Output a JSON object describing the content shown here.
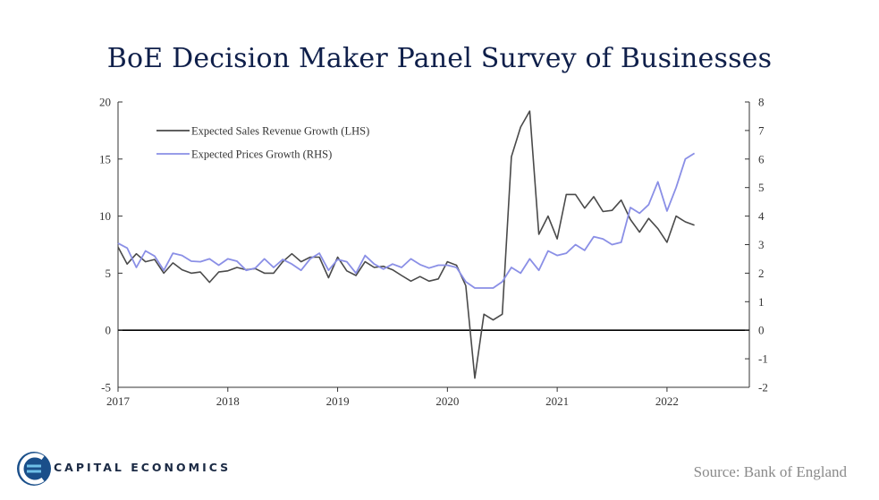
{
  "chart_data": {
    "type": "line",
    "title": "BoE Decision Maker Panel Survey of Businesses",
    "source": "Source:  Bank of England",
    "brand": "CAPITAL ECONOMICS",
    "x_ticks": [
      "2017",
      "2018",
      "2019",
      "2020",
      "2021",
      "2022"
    ],
    "y_left": {
      "min": -5,
      "max": 20,
      "ticks": [
        20,
        15,
        10,
        5,
        0,
        -5
      ]
    },
    "y_right": {
      "min": -2,
      "max": 8,
      "ticks": [
        8,
        7,
        6,
        5,
        4,
        3,
        2,
        1,
        0,
        -1,
        -2
      ]
    },
    "xlim": [
      2017.0,
      2022.75
    ],
    "zero_line": true,
    "legend_position": "top-left",
    "series": [
      {
        "name": "Expected Sales Revenue Growth (LHS)",
        "axis": "left",
        "color": "#4a4a4a",
        "x": [
          2017.0,
          2017.083,
          2017.167,
          2017.25,
          2017.333,
          2017.417,
          2017.5,
          2017.583,
          2017.667,
          2017.75,
          2017.833,
          2017.917,
          2018.0,
          2018.083,
          2018.167,
          2018.25,
          2018.333,
          2018.417,
          2018.5,
          2018.583,
          2018.667,
          2018.75,
          2018.833,
          2018.917,
          2019.0,
          2019.083,
          2019.167,
          2019.25,
          2019.333,
          2019.417,
          2019.5,
          2019.583,
          2019.667,
          2019.75,
          2019.833,
          2019.917,
          2020.0,
          2020.083,
          2020.167,
          2020.25,
          2020.333,
          2020.417,
          2020.5,
          2020.583,
          2020.667,
          2020.75,
          2020.833,
          2020.917,
          2021.0,
          2021.083,
          2021.167,
          2021.25,
          2021.333,
          2021.417,
          2021.5,
          2021.583,
          2021.667,
          2021.75,
          2021.833,
          2021.917,
          2022.0,
          2022.083,
          2022.167,
          2022.25
        ],
        "values": [
          7.3,
          5.8,
          6.7,
          6.0,
          6.2,
          5.0,
          5.9,
          5.3,
          5.0,
          5.1,
          4.2,
          5.1,
          5.2,
          5.5,
          5.3,
          5.4,
          5.0,
          5.0,
          6.0,
          6.7,
          6.0,
          6.4,
          6.4,
          4.6,
          6.4,
          5.2,
          4.8,
          6.0,
          5.5,
          5.6,
          5.3,
          4.8,
          4.3,
          4.7,
          4.3,
          4.5,
          6.0,
          5.7,
          3.9,
          -4.2,
          1.4,
          0.9,
          1.4,
          15.2,
          17.8,
          19.2,
          8.4,
          10.0,
          8.0,
          11.9,
          11.9,
          10.7,
          11.7,
          10.4,
          10.5,
          11.4,
          9.7,
          8.6,
          9.8,
          8.9,
          7.7,
          10.0,
          9.5,
          9.2
        ]
      },
      {
        "name": "Expected Prices Growth (RHS)",
        "axis": "right",
        "color": "#8a8fe6",
        "x": [
          2017.0,
          2017.083,
          2017.167,
          2017.25,
          2017.333,
          2017.417,
          2017.5,
          2017.583,
          2017.667,
          2017.75,
          2017.833,
          2017.917,
          2018.0,
          2018.083,
          2018.167,
          2018.25,
          2018.333,
          2018.417,
          2018.5,
          2018.583,
          2018.667,
          2018.75,
          2018.833,
          2018.917,
          2019.0,
          2019.083,
          2019.167,
          2019.25,
          2019.333,
          2019.417,
          2019.5,
          2019.583,
          2019.667,
          2019.75,
          2019.833,
          2019.917,
          2020.0,
          2020.083,
          2020.167,
          2020.25,
          2020.333,
          2020.417,
          2020.5,
          2020.583,
          2020.667,
          2020.75,
          2020.833,
          2020.917,
          2021.0,
          2021.083,
          2021.167,
          2021.25,
          2021.333,
          2021.417,
          2021.5,
          2021.583,
          2021.667,
          2021.75,
          2021.833,
          2021.917,
          2022.0,
          2022.083,
          2022.167,
          2022.25
        ],
        "values": [
          3.05,
          2.88,
          2.2,
          2.78,
          2.6,
          2.1,
          2.7,
          2.62,
          2.42,
          2.4,
          2.5,
          2.28,
          2.5,
          2.42,
          2.1,
          2.18,
          2.5,
          2.2,
          2.48,
          2.32,
          2.1,
          2.5,
          2.7,
          2.1,
          2.48,
          2.4,
          2.0,
          2.62,
          2.32,
          2.14,
          2.32,
          2.2,
          2.5,
          2.3,
          2.18,
          2.28,
          2.28,
          2.2,
          1.7,
          1.48,
          1.48,
          1.48,
          1.7,
          2.2,
          2.0,
          2.5,
          2.1,
          2.78,
          2.62,
          2.7,
          3.0,
          2.8,
          3.28,
          3.2,
          3.0,
          3.08,
          4.3,
          4.1,
          4.4,
          5.2,
          4.18,
          5.0,
          6.0,
          6.2
        ]
      }
    ]
  }
}
